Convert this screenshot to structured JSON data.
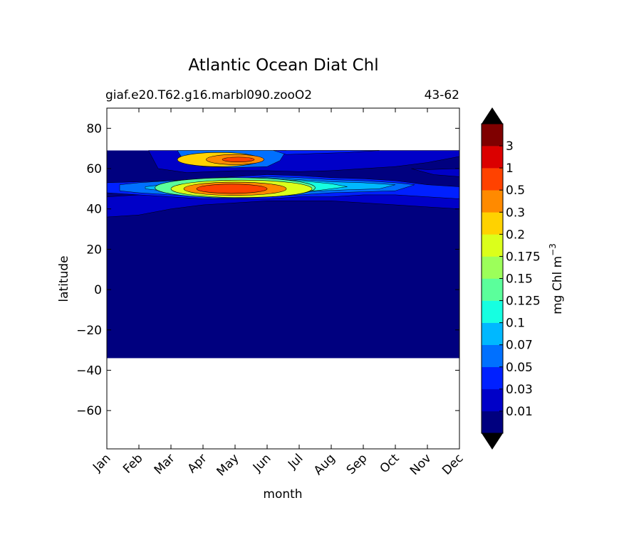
{
  "chart_data": {
    "type": "heatmap",
    "title": "Atlantic Ocean Diat Chl",
    "subtitle_left": "giaf.e20.T62.g16.marbl090.zooO2",
    "subtitle_right": "43-62",
    "xlabel": "month",
    "ylabel": "latitude",
    "x_ticks": [
      "Jan",
      "Feb",
      "Mar",
      "Apr",
      "May",
      "Jun",
      "Jul",
      "Aug",
      "Sep",
      "Oct",
      "Nov",
      "Dec"
    ],
    "xlim": [
      0,
      11
    ],
    "y_ticks": [
      80,
      60,
      40,
      20,
      0,
      -20,
      -40,
      -60
    ],
    "ylim": [
      -79,
      90
    ],
    "data_lat_range": [
      -34,
      69
    ],
    "colorbar": {
      "label": "mg Chl m",
      "label_superscript": "−3",
      "tick_labels": [
        "0.01",
        "0.03",
        "0.05",
        "0.07",
        "0.1",
        "0.125",
        "0.15",
        "0.175",
        "0.2",
        "0.3",
        "0.5",
        "1",
        "3"
      ],
      "colors": [
        "#00007f",
        "#0000c8",
        "#0020ff",
        "#0070ff",
        "#00b8ff",
        "#16ffe1",
        "#5bff9b",
        "#9cff5a",
        "#dbff1b",
        "#ffd200",
        "#ff8a00",
        "#ff4200",
        "#db0000",
        "#7f0000"
      ],
      "extend": "both"
    },
    "blobs": [
      {
        "month": 3.5,
        "lat": 64.5,
        "month_radius": 1.3,
        "lat_radius": 3.5,
        "level": 9
      },
      {
        "month": 4.0,
        "lat": 64.5,
        "month_radius": 0.9,
        "lat_radius": 2.5,
        "level": 10
      },
      {
        "month": 4.1,
        "lat": 64.5,
        "month_radius": 0.5,
        "lat_radius": 1.2,
        "level": 11
      },
      {
        "month": 4.0,
        "lat": 50.5,
        "month_radius": 2.5,
        "lat_radius": 5.0,
        "level": 6
      },
      {
        "month": 4.2,
        "lat": 50.0,
        "month_radius": 2.2,
        "lat_radius": 4.3,
        "level": 8
      },
      {
        "month": 4.0,
        "lat": 50.0,
        "month_radius": 1.6,
        "lat_radius": 3.3,
        "level": 10
      },
      {
        "month": 3.9,
        "lat": 50.0,
        "month_radius": 1.1,
        "lat_radius": 2.3,
        "level": 11
      }
    ]
  }
}
